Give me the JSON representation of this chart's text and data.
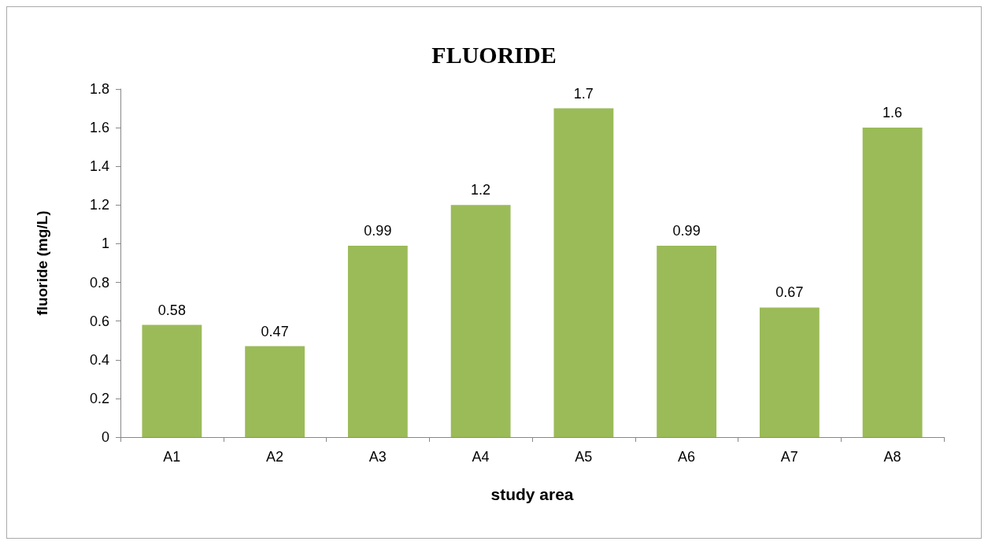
{
  "chart_data": {
    "type": "bar",
    "title": "FLUORIDE",
    "xlabel": "study area",
    "ylabel": "fluoride (mg/L)",
    "categories": [
      "A1",
      "A2",
      "A3",
      "A4",
      "A5",
      "A6",
      "A7",
      "A8"
    ],
    "values": [
      0.58,
      0.47,
      0.99,
      1.2,
      1.7,
      0.99,
      0.67,
      1.6
    ],
    "color": "#9bbb59",
    "ylim": [
      0,
      1.8
    ],
    "yticks": [
      0,
      0.2,
      0.4,
      0.6,
      0.8,
      1,
      1.2,
      1.4,
      1.6,
      1.8
    ],
    "grid": false,
    "data_labels": true
  }
}
